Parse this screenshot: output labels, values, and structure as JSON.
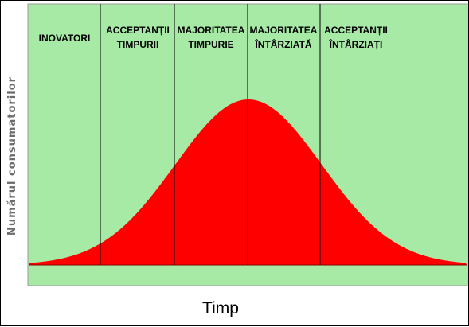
{
  "diagram": {
    "y_axis_label": "Numărul consumatorilor",
    "x_axis_label": "Timp",
    "segments": [
      {
        "line1": "INOVATORI",
        "line2": ""
      },
      {
        "line1": "ACCEPTANȚII",
        "line2": "TIMPURII"
      },
      {
        "line1": "MAJORITATEA",
        "line2": "TIMPURIE"
      },
      {
        "line1": "MAJORITATEA",
        "line2": "ÎNTÂRZIATĂ"
      },
      {
        "line1": "ACCEPTANȚII",
        "line2": "ÎNTÂRZIAȚI"
      }
    ],
    "colors": {
      "background": "#a6eaa6",
      "curve_fill": "#ff0000",
      "divider": "#000000"
    }
  }
}
